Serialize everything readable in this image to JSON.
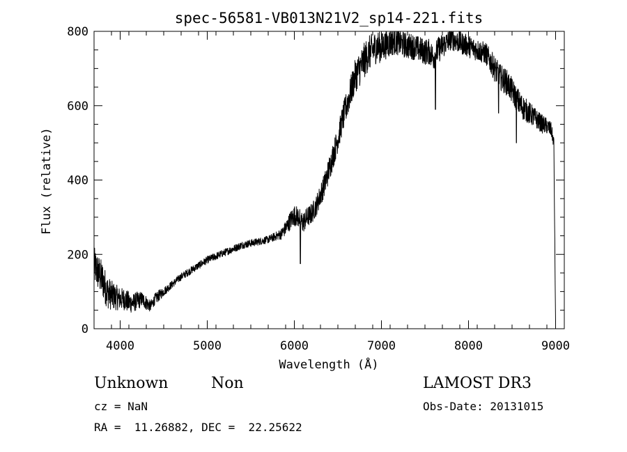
{
  "chart_data": {
    "type": "line",
    "title": "spec-56581-VB013N21V2_sp14-221.fits",
    "xlabel": "Wavelength (Å)",
    "ylabel": "Flux (relative)",
    "xlim": [
      3700,
      9100
    ],
    "ylim": [
      0,
      800
    ],
    "x_ticks": [
      4000,
      5000,
      6000,
      7000,
      8000,
      9000
    ],
    "y_ticks": [
      0,
      200,
      400,
      600,
      800
    ],
    "x_tick_labels": [
      "4000",
      "5000",
      "6000",
      "7000",
      "8000",
      "9000"
    ],
    "y_tick_labels": [
      "0",
      "200",
      "400",
      "600",
      "800"
    ],
    "series": [
      {
        "name": "spectrum",
        "x": [
          3700,
          3750,
          3800,
          3850,
          3900,
          3950,
          4000,
          4050,
          4100,
          4150,
          4200,
          4250,
          4300,
          4350,
          4400,
          4450,
          4500,
          4600,
          4700,
          4800,
          4900,
          5000,
          5100,
          5200,
          5300,
          5400,
          5500,
          5600,
          5700,
          5800,
          5850,
          5900,
          5950,
          6000,
          6050,
          6100,
          6150,
          6200,
          6250,
          6300,
          6350,
          6400,
          6450,
          6500,
          6550,
          6600,
          6650,
          6700,
          6750,
          6800,
          6850,
          6900,
          6950,
          7000,
          7050,
          7100,
          7150,
          7200,
          7250,
          7300,
          7350,
          7400,
          7450,
          7500,
          7550,
          7600,
          7650,
          7700,
          7750,
          7800,
          7850,
          7900,
          7950,
          8000,
          8050,
          8100,
          8150,
          8200,
          8250,
          8300,
          8350,
          8400,
          8450,
          8500,
          8550,
          8600,
          8650,
          8700,
          8750,
          8800,
          8850,
          8900,
          8950,
          8980,
          9000
        ],
        "y": [
          170,
          150,
          130,
          100,
          90,
          85,
          80,
          80,
          70,
          70,
          75,
          80,
          70,
          60,
          80,
          90,
          100,
          120,
          140,
          155,
          170,
          185,
          195,
          205,
          215,
          225,
          230,
          235,
          240,
          250,
          255,
          270,
          290,
          305,
          300,
          285,
          300,
          310,
          330,
          360,
          390,
          430,
          470,
          510,
          560,
          600,
          640,
          680,
          700,
          720,
          740,
          750,
          760,
          755,
          765,
          770,
          775,
          770,
          765,
          760,
          760,
          755,
          750,
          745,
          745,
          730,
          750,
          760,
          770,
          780,
          775,
          770,
          765,
          760,
          755,
          750,
          745,
          740,
          720,
          700,
          680,
          670,
          660,
          640,
          620,
          600,
          590,
          580,
          570,
          560,
          550,
          545,
          535,
          500,
          10
        ],
        "noise": [
          50,
          50,
          50,
          45,
          40,
          35,
          30,
          30,
          30,
          25,
          25,
          20,
          20,
          15,
          15,
          15,
          12,
          10,
          10,
          10,
          10,
          10,
          10,
          10,
          10,
          10,
          10,
          10,
          10,
          12,
          15,
          20,
          25,
          28,
          28,
          28,
          28,
          28,
          28,
          30,
          32,
          35,
          35,
          35,
          38,
          40,
          42,
          45,
          48,
          48,
          48,
          45,
          45,
          40,
          40,
          40,
          38,
          35,
          35,
          35,
          35,
          35,
          35,
          35,
          35,
          35,
          35,
          35,
          30,
          30,
          30,
          30,
          30,
          30,
          30,
          30,
          30,
          30,
          32,
          35,
          35,
          35,
          35,
          35,
          35,
          35,
          32,
          30,
          28,
          25,
          25,
          22,
          20,
          15,
          5
        ],
        "absorption_features": [
          {
            "x": 6070,
            "y": 175
          },
          {
            "x": 7620,
            "y": 590
          },
          {
            "x": 8345,
            "y": 580
          },
          {
            "x": 8550,
            "y": 500
          }
        ]
      }
    ]
  },
  "info": {
    "class_text": "Unknown",
    "subclass_text": "Non",
    "cz_text": "cz = NaN",
    "coords_text": "RA =  11.26882, DEC =  22.25622",
    "survey_text": "LAMOST DR3",
    "obs_date_text": "Obs-Date: 20131015"
  }
}
